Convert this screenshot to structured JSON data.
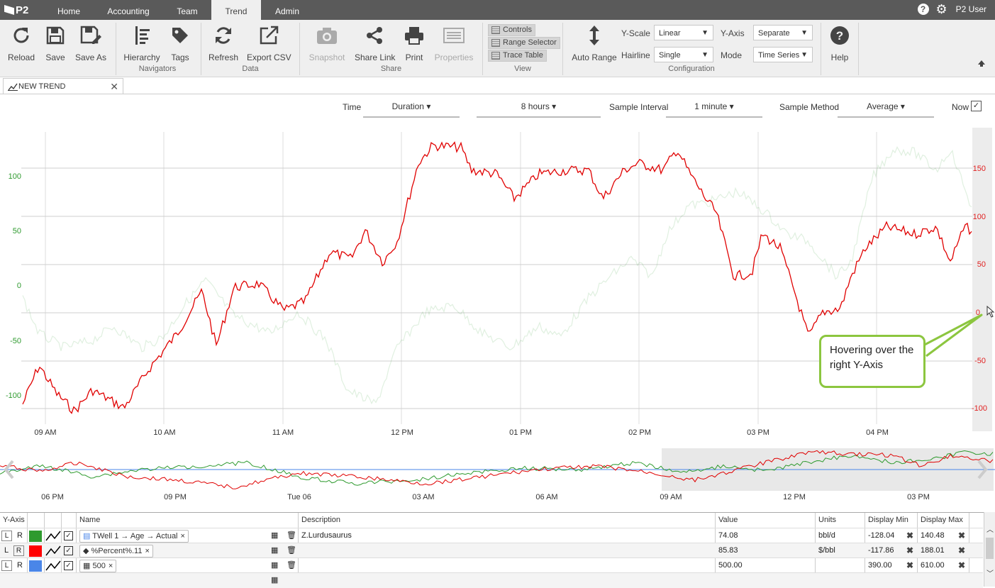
{
  "app": {
    "logo": "P2"
  },
  "nav": {
    "tabs": [
      "Home",
      "Accounting",
      "Team",
      "Trend",
      "Admin"
    ],
    "active": "Trend",
    "user": "P2 User"
  },
  "ribbon": {
    "buttons": {
      "reload": "Reload",
      "save": "Save",
      "save_as": "Save As",
      "hierarchy": "Hierarchy",
      "tags": "Tags",
      "refresh": "Refresh",
      "export_csv": "Export CSV",
      "snapshot": "Snapshot",
      "share_link": "Share Link",
      "print": "Print",
      "properties": "Properties",
      "auto_range": "Auto Range",
      "help": "Help"
    },
    "groups": {
      "navigators": "Navigators",
      "data": "Data",
      "share": "Share",
      "view": "View",
      "configuration": "Configuration"
    },
    "view_buttons": {
      "controls": "Controls",
      "range_selector": "Range Selector",
      "trace_table": "Trace Table"
    },
    "config": {
      "yscale_label": "Y-Scale",
      "yscale_value": "Linear",
      "yaxis_label": "Y-Axis",
      "yaxis_value": "Separate",
      "hairline_label": "Hairline",
      "hairline_value": "Single",
      "mode_label": "Mode",
      "mode_value": "Time Series"
    }
  },
  "doc_tab": {
    "title": "NEW TREND"
  },
  "controls": {
    "time_label": "Time",
    "duration": "Duration",
    "hours": "8 hours",
    "sample_interval_label": "Sample Interval",
    "interval": "1 minute",
    "sample_method_label": "Sample Method",
    "method": "Average",
    "now_label": "Now",
    "now_checked": "✓"
  },
  "callout": {
    "text": "Hovering over the right Y-Axis"
  },
  "chart_data": {
    "type": "line",
    "x_ticks": [
      "09 AM",
      "10 AM",
      "11 AM",
      "12 PM",
      "01 PM",
      "02 PM",
      "03 PM",
      "04 PM"
    ],
    "left_axis": {
      "ticks": [
        "100",
        "50",
        "0",
        "-50",
        "-100"
      ],
      "color": "#2e9a2e"
    },
    "right_axis": {
      "ticks": [
        "150",
        "100",
        "50",
        "0",
        "-50",
        "-100"
      ],
      "color": "#e02020"
    },
    "series": [
      {
        "name": "TWell 1 → Age → Actual",
        "color": "#2e9a2e",
        "axis": "left"
      },
      {
        "name": "%Percent%.11",
        "color": "#e02020",
        "axis": "right"
      },
      {
        "name": "500",
        "color": "#4a86e8"
      }
    ],
    "navigator_ticks": [
      "06 PM",
      "09 PM",
      "Tue 06",
      "03 AM",
      "06 AM",
      "09 AM",
      "12 PM",
      "03 PM"
    ]
  },
  "table": {
    "headers": {
      "yaxis": "Y-Axis",
      "name": "Name",
      "description": "Description",
      "value": "Value",
      "units": "Units",
      "dmin": "Display Min",
      "dmax": "Display Max"
    },
    "rows": [
      {
        "l": "L",
        "r": "R",
        "color": "#2e9a2e",
        "name": "TWell 1 → Age → Actual",
        "description": "Z.Lurdusaurus",
        "value": "74.08",
        "units": "bbl/d",
        "dmin": "-128.04",
        "dmax": "140.48"
      },
      {
        "l": "L",
        "r": "R",
        "color": "#ff0000",
        "name": "%Percent%.11",
        "description": "",
        "value": "85.83",
        "units": "$/bbl",
        "dmin": "-117.86",
        "dmax": "188.01"
      },
      {
        "l": "L",
        "r": "R",
        "color": "#4a86e8",
        "name": "500",
        "description": "",
        "value": "500.00",
        "units": "",
        "dmin": "390.00",
        "dmax": "610.00"
      }
    ]
  }
}
